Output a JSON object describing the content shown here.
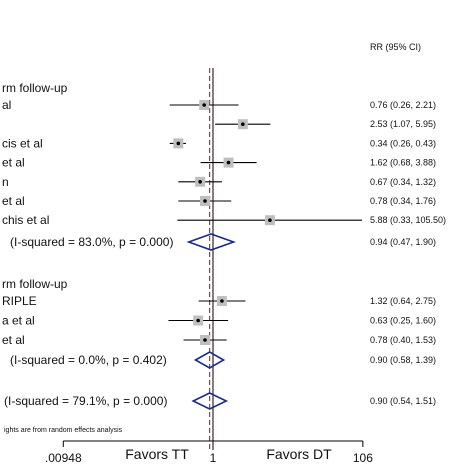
{
  "chart_data": {
    "type": "forest",
    "column_header": "RR (95% CI)",
    "x_axis": {
      "scale": "log",
      "ticks": [
        {
          "value": 0.00948,
          "label": ".00948"
        },
        {
          "value": 1,
          "label": "1"
        },
        {
          "value": 106,
          "label": "106"
        }
      ],
      "favors_left": "Favors TT",
      "favors_right": "Favors DT"
    },
    "footnote": "ights are from random effects analysis",
    "groups": [
      {
        "label": "rm follow-up",
        "studies": [
          {
            "label": "al",
            "rr": 0.76,
            "lo": 0.26,
            "hi": 2.21,
            "ci_text": "0.76 (0.26, 2.21)"
          },
          {
            "label": "",
            "rr": 2.53,
            "lo": 1.07,
            "hi": 5.95,
            "ci_text": "2.53 (1.07, 5.95)"
          },
          {
            "label": "cis et al",
            "rr": 0.34,
            "lo": 0.26,
            "hi": 0.43,
            "ci_text": "0.34 (0.26, 0.43)"
          },
          {
            "label": "et al",
            "rr": 1.62,
            "lo": 0.68,
            "hi": 3.88,
            "ci_text": "1.62 (0.68, 3.88)"
          },
          {
            "label": "n",
            "rr": 0.67,
            "lo": 0.34,
            "hi": 1.32,
            "ci_text": "0.67 (0.34, 1.32)"
          },
          {
            "label": "et al",
            "rr": 0.78,
            "lo": 0.34,
            "hi": 1.76,
            "ci_text": "0.78 (0.34, 1.76)"
          },
          {
            "label": "chis et al",
            "rr": 5.88,
            "lo": 0.33,
            "hi": 105.5,
            "ci_text": "5.88 (0.33, 105.50)"
          }
        ],
        "subtotal": {
          "label": "(I-squared = 83.0%, p = 0.000)",
          "rr": 0.94,
          "lo": 0.47,
          "hi": 1.9,
          "ci_text": "0.94 (0.47, 1.90)"
        }
      },
      {
        "label": "rm follow-up",
        "studies": [
          {
            "label": "RIPLE",
            "rr": 1.32,
            "lo": 0.64,
            "hi": 2.75,
            "ci_text": "1.32 (0.64, 2.75)"
          },
          {
            "label": "a et al",
            "rr": 0.63,
            "lo": 0.25,
            "hi": 1.6,
            "ci_text": "0.63 (0.25, 1.60)"
          },
          {
            "label": "et al",
            "rr": 0.78,
            "lo": 0.4,
            "hi": 1.53,
            "ci_text": "0.78 (0.40, 1.53)"
          }
        ],
        "subtotal": {
          "label": "(I-squared = 0.0%, p = 0.402)",
          "rr": 0.9,
          "lo": 0.58,
          "hi": 1.39,
          "ci_text": "0.90 (0.58, 1.39)"
        }
      }
    ],
    "overall": {
      "label": "(I-squared = 79.1%, p = 0.000)",
      "rr": 0.9,
      "lo": 0.54,
      "hi": 1.51,
      "ci_text": "0.90 (0.54, 1.51)"
    },
    "colors": {
      "null_line": "#000000",
      "overall_line": "#c0302a",
      "diamond": "#1a2a8a",
      "box": "#bfbfbf",
      "ci": "#000000"
    }
  }
}
